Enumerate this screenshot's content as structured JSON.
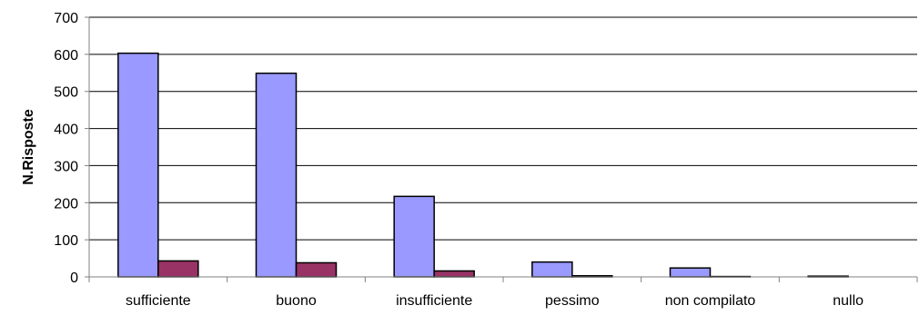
{
  "chart_data": {
    "type": "bar",
    "title": "",
    "xlabel": "",
    "ylabel": "N.Risposte",
    "categories": [
      "sufficiente",
      "buono",
      "insufficiente",
      "pessimo",
      "non compilato",
      "nullo"
    ],
    "series": [
      {
        "values": [
          603,
          549,
          217,
          40,
          24,
          2
        ],
        "color": "#9999FF"
      },
      {
        "values": [
          43,
          38,
          16,
          3,
          1,
          0
        ],
        "color": "#993366"
      }
    ],
    "ylim": [
      0,
      700
    ],
    "yticks": [
      0,
      100,
      200,
      300,
      400,
      500,
      600,
      700
    ],
    "grid": true,
    "legend": "none"
  }
}
